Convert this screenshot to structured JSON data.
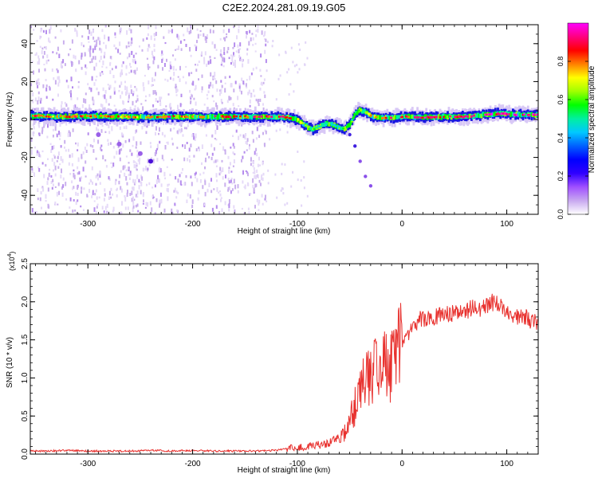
{
  "title": "C2E2.2024.281.09.19.G05",
  "colors": {
    "snr_line": "#e8312e",
    "track_core": "#ff2222",
    "track_mid": "#00e070",
    "track_outer": "#1818e0",
    "scatter": "#a070e0",
    "axis": "#000000"
  },
  "chart_data": [
    {
      "type": "heatmap",
      "xlabel": "Height of straight line (km)",
      "ylabel": "Frequency (Hz)",
      "xlim": [
        -355,
        130
      ],
      "ylim": [
        -50,
        50
      ],
      "xticks": [
        -300,
        -200,
        -100,
        0,
        100
      ],
      "xtick_labels": [
        "-300",
        "-200",
        "-100",
        "0",
        "100"
      ],
      "yticks": [
        -40,
        -20,
        0,
        20,
        40
      ],
      "ytick_labels": [
        "-40",
        "-20",
        "0",
        "20",
        "40"
      ],
      "colorbar": {
        "label": "Normalized spectral amplitude",
        "range": [
          0.0,
          1.0
        ],
        "ticks": [
          0.0,
          0.2,
          0.4,
          0.6,
          0.8
        ],
        "tick_labels": [
          "0.0",
          "0.2",
          "0.4",
          "0.6",
          "0.8"
        ],
        "colormap": [
          "#ffffff",
          "#c8a8f0",
          "#a050ff",
          "#3000ff",
          "#0000ff",
          "#0060ff",
          "#00c8ff",
          "#00f0a0",
          "#00ff00",
          "#a0ff00",
          "#ffff00",
          "#ff8000",
          "#ff0000",
          "#ff0080",
          "#ff00ff"
        ]
      },
      "ridge": {
        "x": [
          -355,
          -330,
          -300,
          -270,
          -250,
          -220,
          -200,
          -180,
          -150,
          -130,
          -110,
          -100,
          -95,
          -90,
          -85,
          -80,
          -75,
          -70,
          -65,
          -60,
          -55,
          -50,
          -45,
          -40,
          -35,
          -30,
          -20,
          -10,
          0,
          10,
          20,
          40,
          60,
          70,
          80,
          90,
          100,
          110,
          120,
          130
        ],
        "y": [
          2,
          1.5,
          1.8,
          1.5,
          1.2,
          1.5,
          1.3,
          1.5,
          1.5,
          1.5,
          1.2,
          0,
          -2,
          -4,
          -5,
          -4,
          -3,
          -2,
          -3,
          -4,
          -5,
          -3,
          3,
          5,
          4,
          2,
          1,
          1,
          1.5,
          1.5,
          1.2,
          1.5,
          1.5,
          2,
          2.5,
          3,
          3,
          2.5,
          2.5,
          2.5
        ],
        "amplitude": [
          0.85,
          0.8,
          0.85,
          0.8,
          0.8,
          0.85,
          0.8,
          0.85,
          0.85,
          0.85,
          0.85,
          0.7,
          0.6,
          0.55,
          0.55,
          0.5,
          0.5,
          0.5,
          0.5,
          0.5,
          0.5,
          0.55,
          0.5,
          0.6,
          0.7,
          0.75,
          0.8,
          0.85,
          0.85,
          0.9,
          0.9,
          0.9,
          0.9,
          0.9,
          0.95,
          0.95,
          0.95,
          0.95,
          0.95,
          0.95
        ]
      },
      "features": {
        "noise_region_x": [
          -355,
          -130
        ],
        "tail": {
          "x": [
            -50,
            -45,
            -40,
            -35,
            -30
          ],
          "y": [
            -8,
            -14,
            -22,
            -30,
            -35
          ]
        },
        "diagonal": {
          "x": [
            -290,
            -270,
            -250,
            -240
          ],
          "y": [
            -8,
            -13,
            -18,
            -22
          ]
        }
      }
    },
    {
      "type": "line",
      "xlabel": "Height of straight line (km)",
      "ylabel": "SNR (10 * v/v)",
      "yscale_label": "(x10",
      "yscale_exp": "4",
      "xlim": [
        -355,
        130
      ],
      "ylim": [
        0,
        2.5
      ],
      "xticks": [
        -300,
        -200,
        -100,
        0,
        100
      ],
      "xtick_labels": [
        "-300",
        "-200",
        "-100",
        "0",
        "100"
      ],
      "yticks": [
        0,
        0.5,
        1.0,
        1.5,
        2.0,
        2.5
      ],
      "ytick_labels": [
        "0.0",
        "0.5",
        "1.0",
        "1.5",
        "2.0",
        "2.5"
      ],
      "series": [
        {
          "x": [
            -355,
            -340,
            -320,
            -300,
            -280,
            -260,
            -240,
            -220,
            -200,
            -180,
            -160,
            -140,
            -120,
            -110,
            -100,
            -90,
            -80,
            -75,
            -70,
            -65,
            -60,
            -55,
            -50,
            -45,
            -40,
            -35,
            -30,
            -25,
            -20,
            -15,
            -10,
            -5,
            0,
            5,
            10,
            15,
            20,
            25,
            30,
            35,
            40,
            45,
            50,
            55,
            60,
            65,
            70,
            75,
            80,
            85,
            90,
            95,
            100,
            105,
            110,
            115,
            120,
            125,
            130
          ],
          "y": [
            0.04,
            0.04,
            0.05,
            0.04,
            0.04,
            0.04,
            0.05,
            0.04,
            0.05,
            0.04,
            0.04,
            0.04,
            0.05,
            0.07,
            0.09,
            0.1,
            0.12,
            0.12,
            0.15,
            0.17,
            0.21,
            0.28,
            0.42,
            0.62,
            0.82,
            0.95,
            1.02,
            1.05,
            1.1,
            1.15,
            1.2,
            1.25,
            1.45,
            1.58,
            1.68,
            1.75,
            1.78,
            1.8,
            1.78,
            1.82,
            1.8,
            1.85,
            1.85,
            1.88,
            1.86,
            1.92,
            1.95,
            1.9,
            1.95,
            2.0,
            1.98,
            1.92,
            1.9,
            1.85,
            1.8,
            1.8,
            1.78,
            1.75,
            1.72
          ]
        }
      ]
    }
  ]
}
